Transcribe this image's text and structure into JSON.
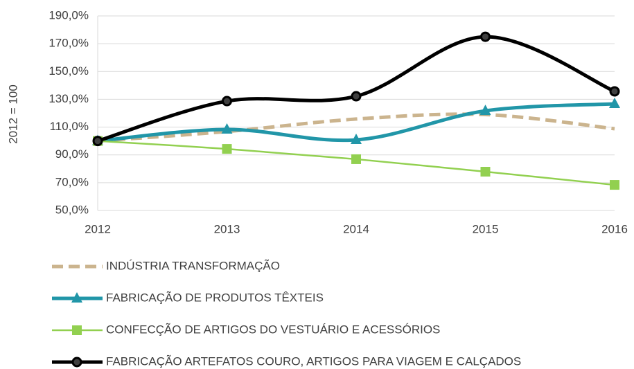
{
  "chart_data": {
    "type": "line",
    "smooth": true,
    "grid": true,
    "y_label": "2012 = 100",
    "categories": [
      "2012",
      "2013",
      "2014",
      "2015",
      "2016"
    ],
    "ylim": [
      50,
      190
    ],
    "yticks": [
      {
        "value": 50,
        "label": "50,0%"
      },
      {
        "value": 70,
        "label": "70,0%"
      },
      {
        "value": 90,
        "label": "90,0%"
      },
      {
        "value": 110,
        "label": "110,0%"
      },
      {
        "value": 130,
        "label": "130,0%"
      },
      {
        "value": 150,
        "label": "150,0%"
      },
      {
        "value": 170,
        "label": "170,0%"
      },
      {
        "value": 190,
        "label": "190,0%"
      }
    ],
    "series": [
      {
        "name": "INDÚSTRIA TRANSFORMAÇÃO",
        "color": "#cbb48e",
        "dashed": true,
        "marker": "none",
        "values": [
          100,
          106.8,
          115.8,
          119,
          108.8
        ]
      },
      {
        "name": "FABRICAÇÃO DE PRODUTOS TÊXTEIS",
        "color": "#2196a8",
        "dashed": false,
        "marker": "triangle",
        "values": [
          100,
          108.3,
          100.8,
          121.7,
          126.7
        ]
      },
      {
        "name": "CONFECÇÃO DE ARTIGOS DO VESTUÁRIO E ACESSÓRIOS",
        "color": "#92d050",
        "dashed": false,
        "marker": "square",
        "values": [
          100,
          94.3,
          86.9,
          77.9,
          68.4
        ]
      },
      {
        "name": "FABRICAÇÃO ARTEFATOS COURO, ARTIGOS PARA VIAGEM E CALÇADOS",
        "color": "#000000",
        "dashed": false,
        "marker": "circle",
        "values": [
          100,
          128.7,
          132.2,
          175,
          135.7
        ]
      }
    ]
  }
}
